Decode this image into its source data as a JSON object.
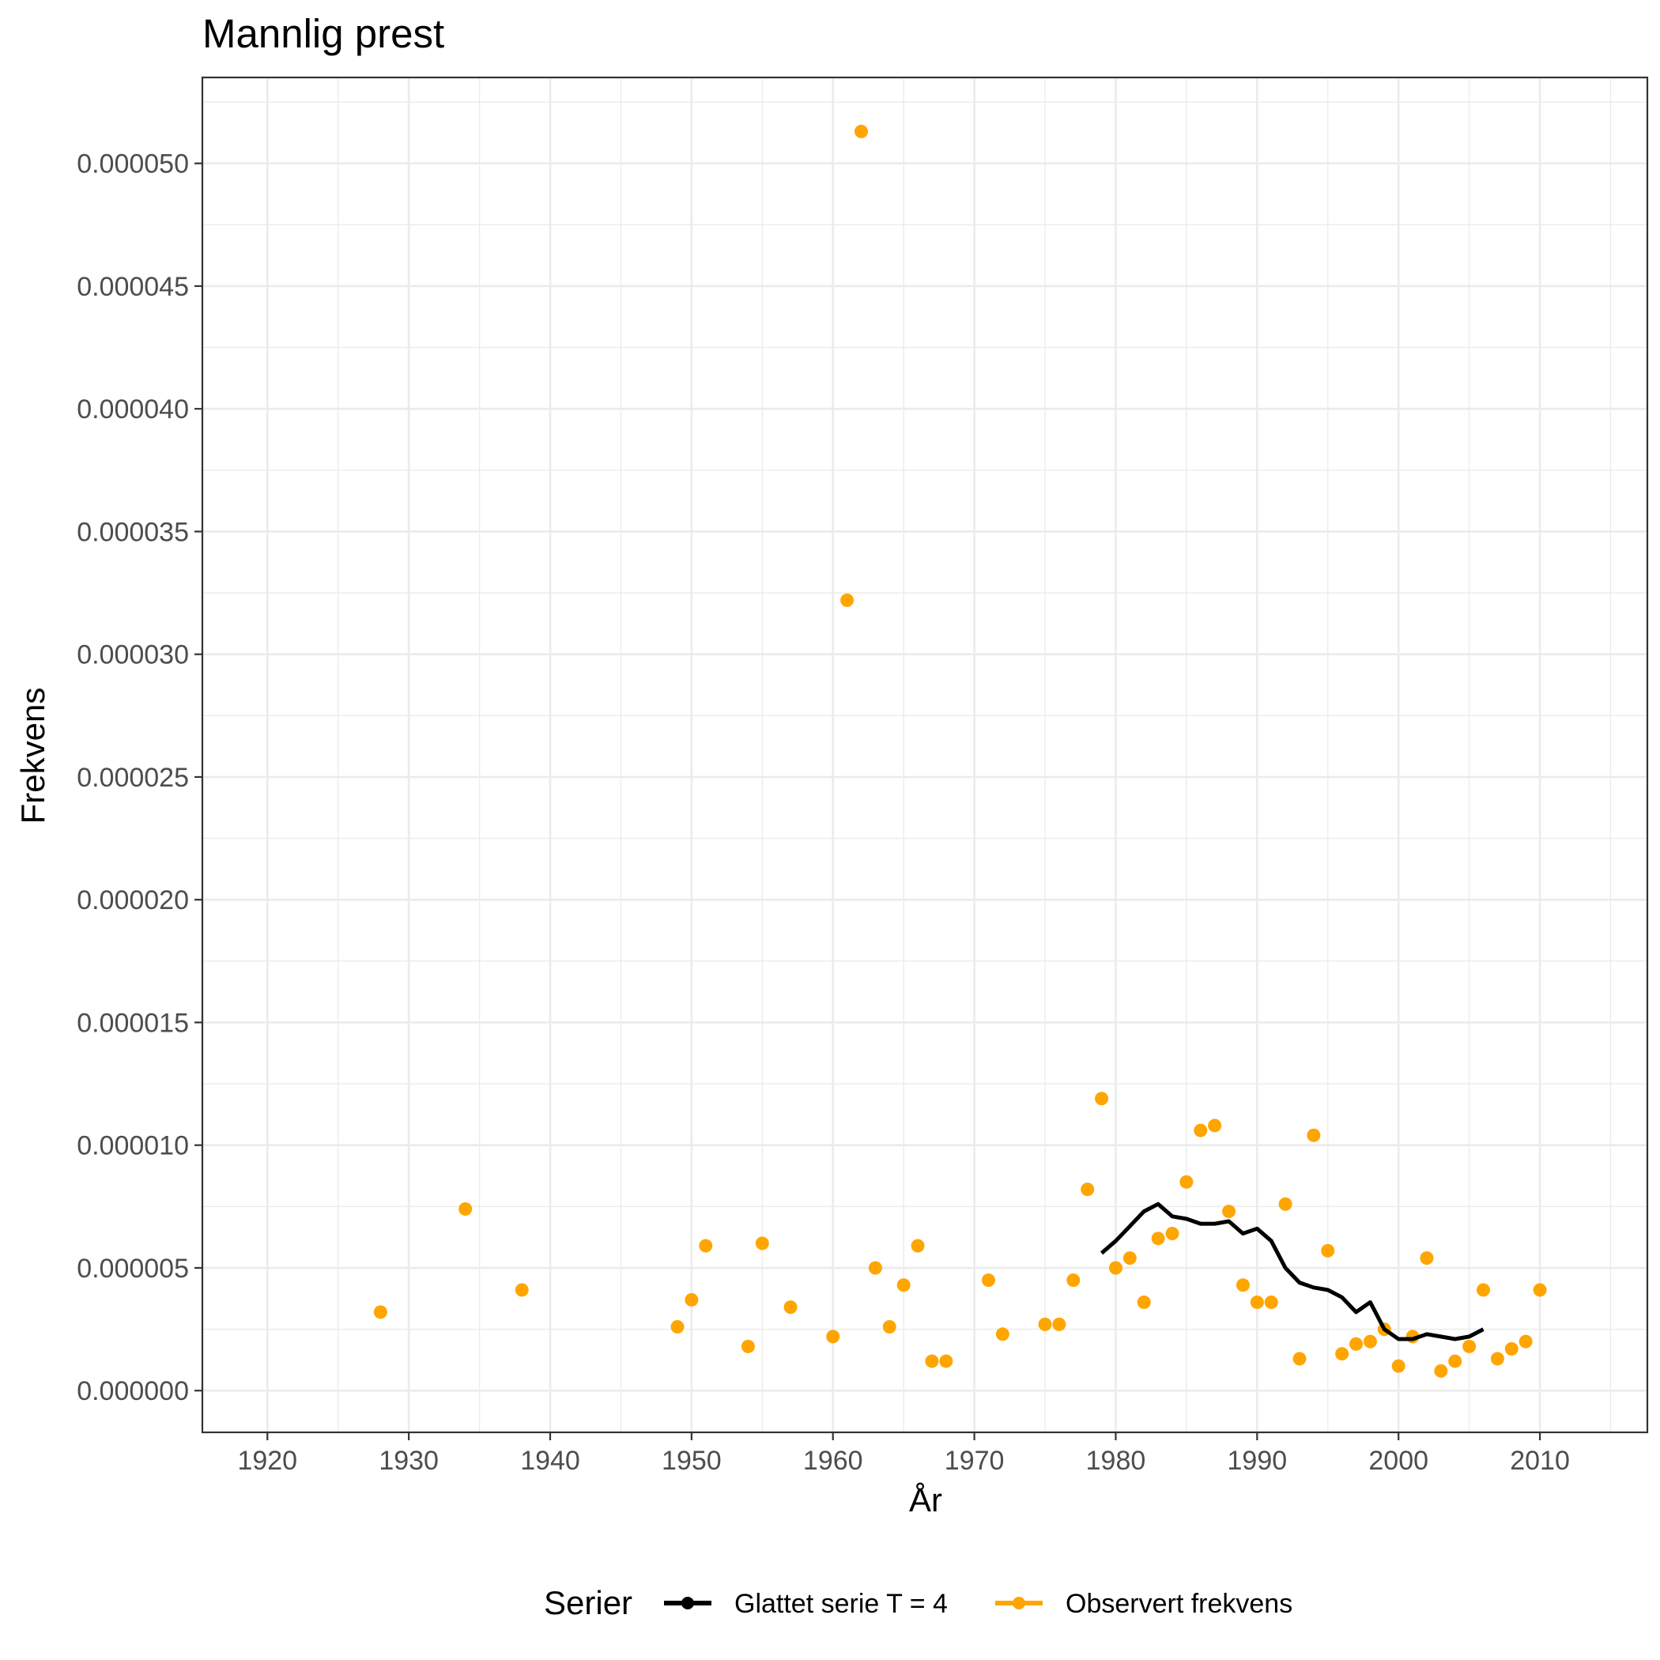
{
  "chart_data": {
    "type": "scatter",
    "title": "Mannlig prest",
    "xlabel": "År",
    "ylabel": "Frekvens",
    "xlim": [
      1915.4,
      2017.6
    ],
    "ylim": [
      -1.7e-06,
      5.35e-05
    ],
    "x_ticks": [
      1920,
      1930,
      1940,
      1950,
      1960,
      1970,
      1980,
      1990,
      2000,
      2010
    ],
    "y_ticks": [
      0,
      5e-06,
      1e-05,
      1.5e-05,
      2e-05,
      2.5e-05,
      3e-05,
      3.5e-05,
      4e-05,
      4.5e-05,
      5e-05
    ],
    "y_tick_labels": [
      "0.000000",
      "0.000005",
      "0.000010",
      "0.000015",
      "0.000020",
      "0.000025",
      "0.000030",
      "0.000035",
      "0.000040",
      "0.000045",
      "0.000050"
    ],
    "x_tick_labels": [
      "1920",
      "1930",
      "1940",
      "1950",
      "1960",
      "1970",
      "1980",
      "1990",
      "2000",
      "2010"
    ],
    "grid": true,
    "legend": {
      "title": "Serier",
      "placement": "bottom",
      "entries": [
        "Glattet serie T  = 4",
        "Observert frekvens"
      ]
    },
    "series": [
      {
        "name": "Observert frekvens",
        "kind": "points",
        "color": "#FFA500",
        "x": [
          1928,
          1934,
          1938,
          1949,
          1950,
          1951,
          1954,
          1955,
          1957,
          1960,
          1961,
          1962,
          1963,
          1964,
          1965,
          1966,
          1967,
          1968,
          1971,
          1972,
          1975,
          1976,
          1977,
          1978,
          1979,
          1980,
          1981,
          1982,
          1983,
          1984,
          1985,
          1986,
          1987,
          1988,
          1989,
          1990,
          1991,
          1992,
          1993,
          1994,
          1995,
          1996,
          1997,
          1998,
          1999,
          2000,
          2001,
          2002,
          2003,
          2004,
          2005,
          2006,
          2007,
          2008,
          2009,
          2010
        ],
        "y": [
          3.2e-06,
          7.4e-06,
          4.1e-06,
          2.6e-06,
          3.7e-06,
          5.9e-06,
          1.8e-06,
          6e-06,
          3.4e-06,
          2.2e-06,
          3.22e-05,
          5.13e-05,
          5e-06,
          2.6e-06,
          4.3e-06,
          5.9e-06,
          1.2e-06,
          1.2e-06,
          4.5e-06,
          2.3e-06,
          2.7e-06,
          2.7e-06,
          4.5e-06,
          8.2e-06,
          1.19e-05,
          5e-06,
          5.4e-06,
          3.6e-06,
          6.2e-06,
          6.4e-06,
          8.5e-06,
          1.06e-05,
          1.08e-05,
          7.3e-06,
          4.3e-06,
          3.6e-06,
          3.6e-06,
          7.6e-06,
          1.3e-06,
          1.04e-05,
          5.7e-06,
          1.5e-06,
          1.9e-06,
          2e-06,
          2.5e-06,
          1e-06,
          2.2e-06,
          5.4e-06,
          8e-07,
          1.2e-06,
          1.8e-06,
          4.1e-06,
          1.3e-06,
          1.7e-06,
          2e-06,
          4.1e-06
        ]
      },
      {
        "name": "Glattet serie T  = 4",
        "kind": "line",
        "color": "#000000",
        "x": [
          1979,
          1980,
          1981,
          1982,
          1983,
          1984,
          1985,
          1986,
          1987,
          1988,
          1989,
          1990,
          1991,
          1992,
          1993,
          1994,
          1995,
          1996,
          1997,
          1998,
          1999,
          2000,
          2001,
          2002,
          2003,
          2004,
          2005,
          2006
        ],
        "y": [
          5.6e-06,
          6.1e-06,
          6.7e-06,
          7.3e-06,
          7.6e-06,
          7.1e-06,
          7e-06,
          6.8e-06,
          6.8e-06,
          6.9e-06,
          6.4e-06,
          6.6e-06,
          6.1e-06,
          5e-06,
          4.4e-06,
          4.2e-06,
          4.1e-06,
          3.8e-06,
          3.2e-06,
          3.6e-06,
          2.5e-06,
          2.1e-06,
          2.1e-06,
          2.3e-06,
          2.2e-06,
          2.1e-06,
          2.2e-06,
          2.5e-06
        ]
      }
    ]
  }
}
